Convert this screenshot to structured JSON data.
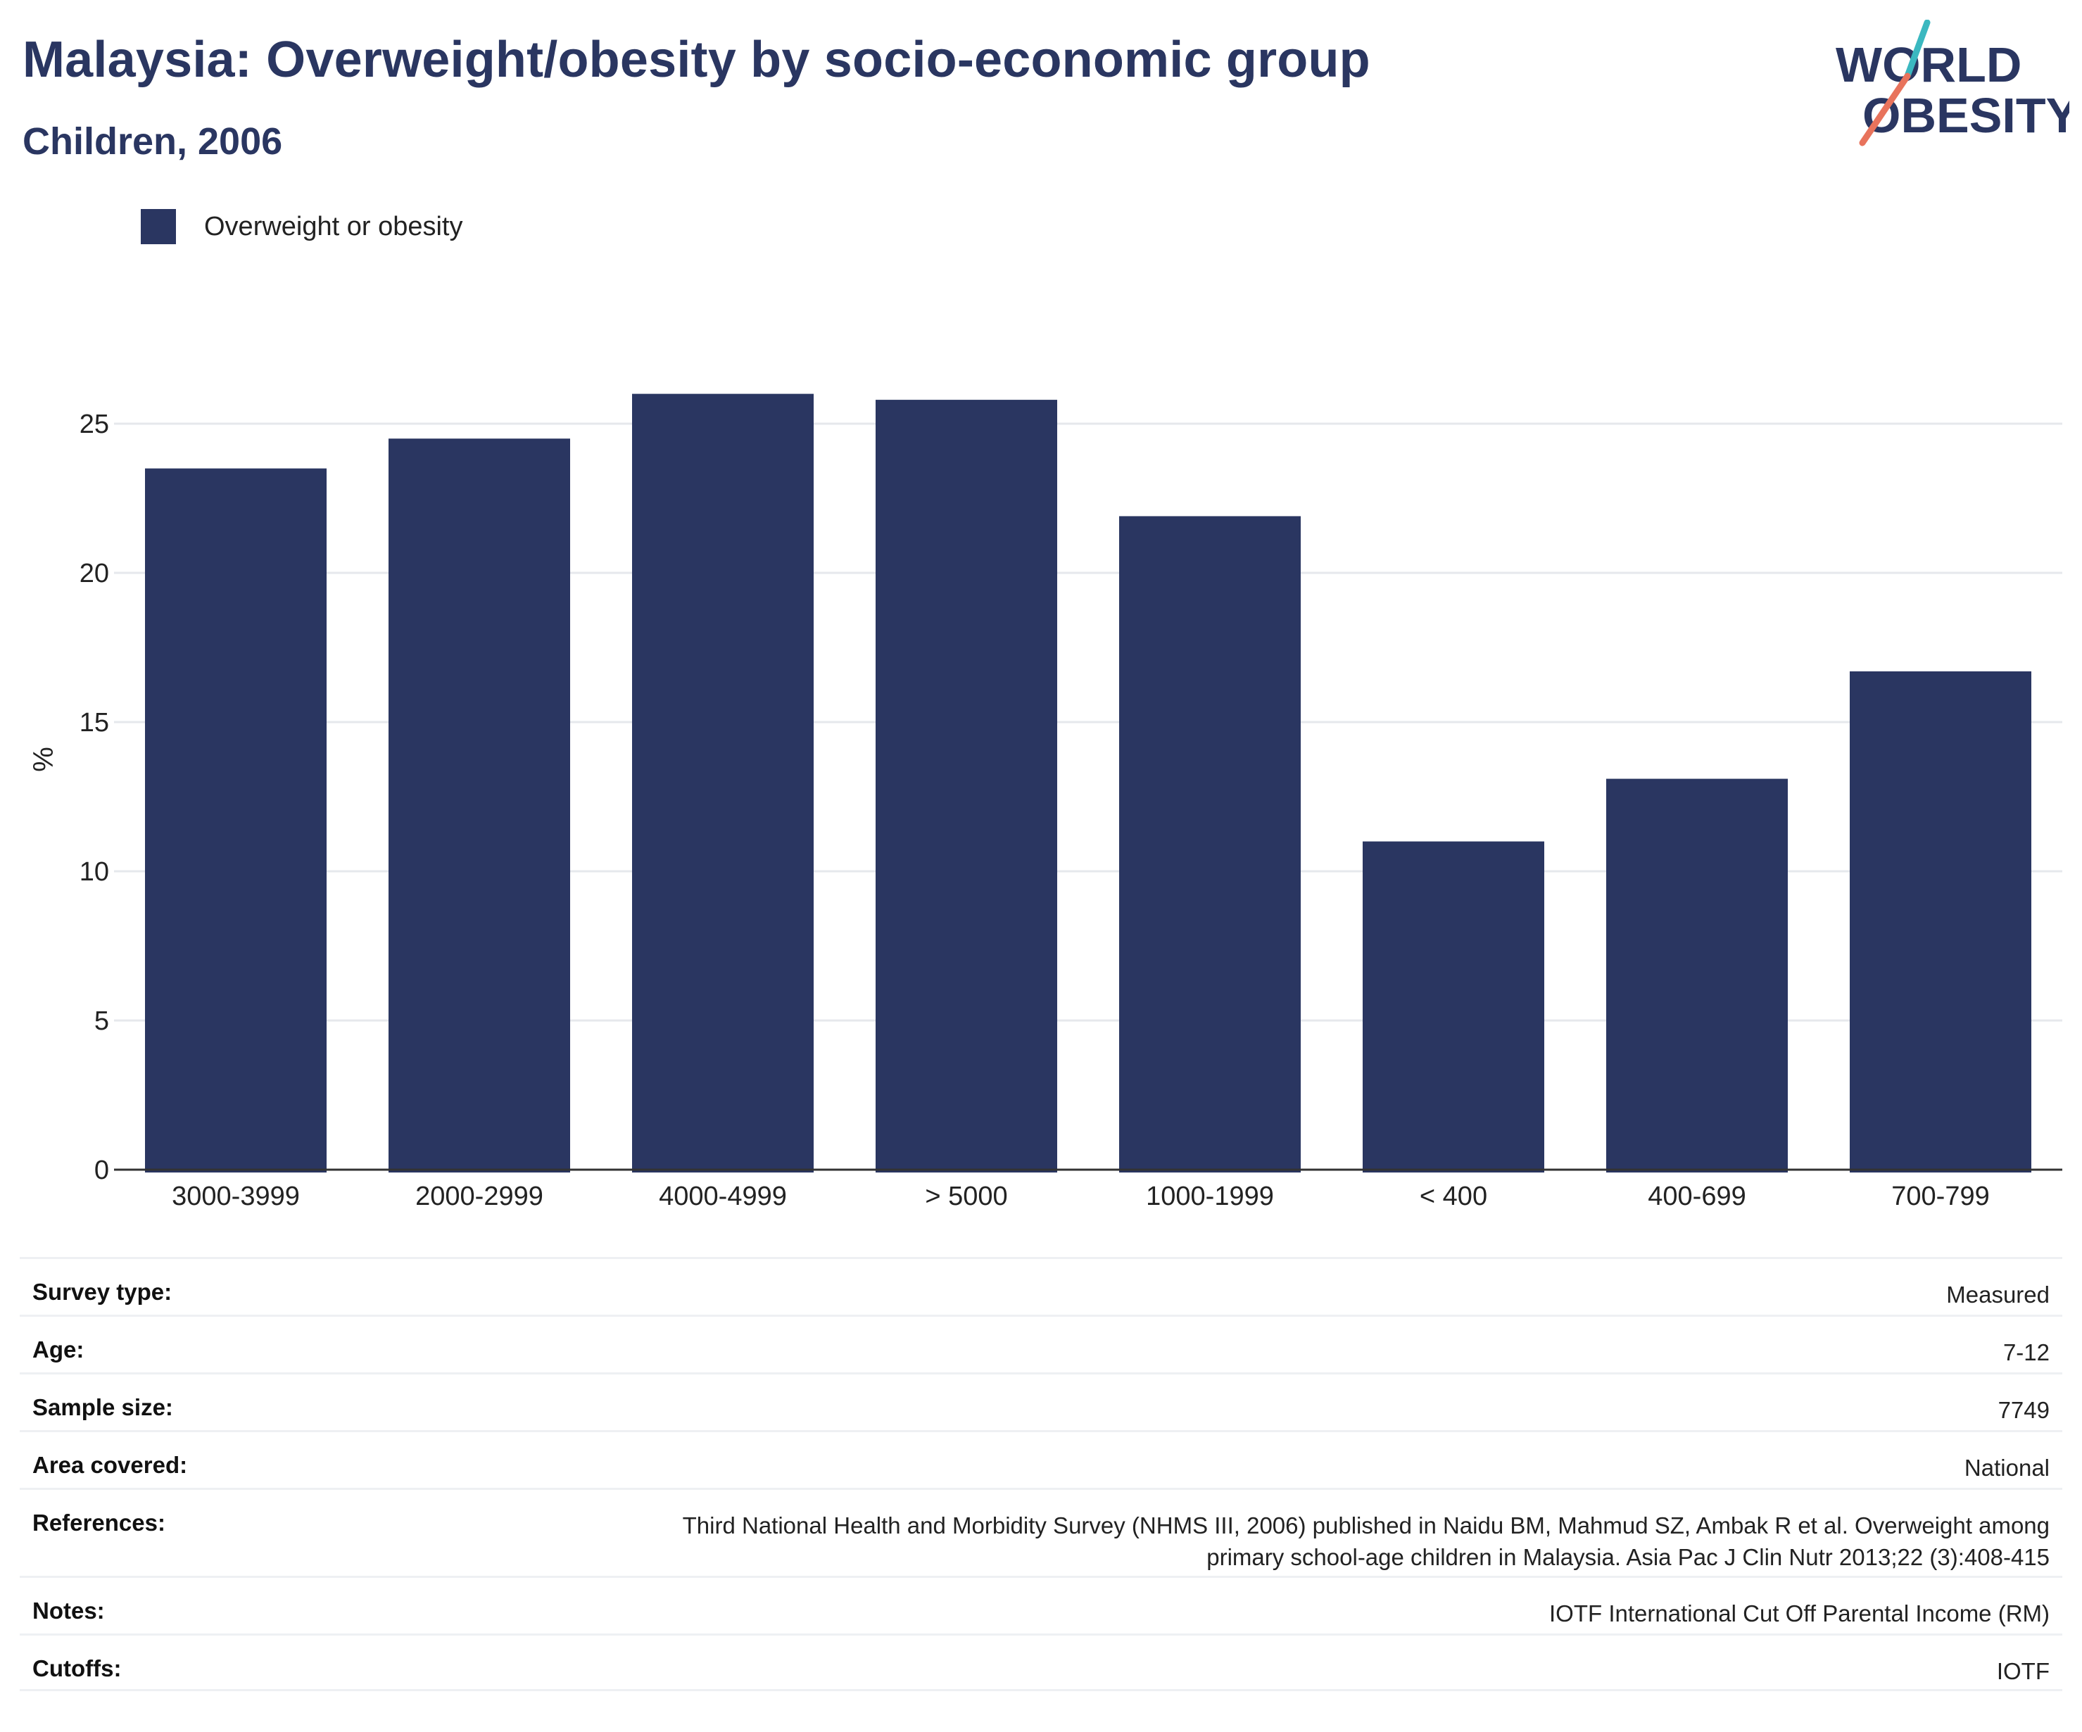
{
  "header": {
    "title": "Malaysia: Overweight/obesity by socio-economic group",
    "subtitle": "Children, 2006"
  },
  "logo": {
    "line1": "WORLD",
    "line2": "OBESITY"
  },
  "colors": {
    "bar": "#2a3661",
    "grid": "#e6e8ec",
    "axis": "#333333",
    "logo_teal": "#3bb8c0",
    "logo_coral": "#e8735c"
  },
  "chart_data": {
    "type": "bar",
    "categories": [
      "3000-3999",
      "2000-2999",
      "4000-4999",
      "> 5000",
      "1000-1999",
      "< 400",
      "400-699",
      "700-799"
    ],
    "series": [
      {
        "name": "Overweight or obesity",
        "values": [
          23.5,
          24.5,
          26.0,
          25.8,
          21.9,
          11.0,
          13.1,
          16.7
        ]
      }
    ],
    "ylabel": "%",
    "xlabel": "",
    "ylim": [
      0,
      27.5
    ],
    "yticks": [
      0,
      5,
      10,
      15,
      20,
      25
    ],
    "grid": true,
    "legend": "top-left"
  },
  "info": [
    {
      "label": "Survey type:",
      "value": "Measured"
    },
    {
      "label": "Age:",
      "value": "7-12"
    },
    {
      "label": "Sample size:",
      "value": "7749"
    },
    {
      "label": "Area covered:",
      "value": "National"
    },
    {
      "label": "References:",
      "value": "Third National Health and Morbidity Survey (NHMS III, 2006) published in Naidu BM, Mahmud SZ, Ambak R et al. Overweight among\nprimary school-age children in Malaysia. Asia Pac J Clin Nutr 2013;22 (3):408-415"
    },
    {
      "label": "Notes:",
      "value": "IOTF International Cut Off Parental Income (RM)"
    },
    {
      "label": "Cutoffs:",
      "value": "IOTF"
    }
  ]
}
